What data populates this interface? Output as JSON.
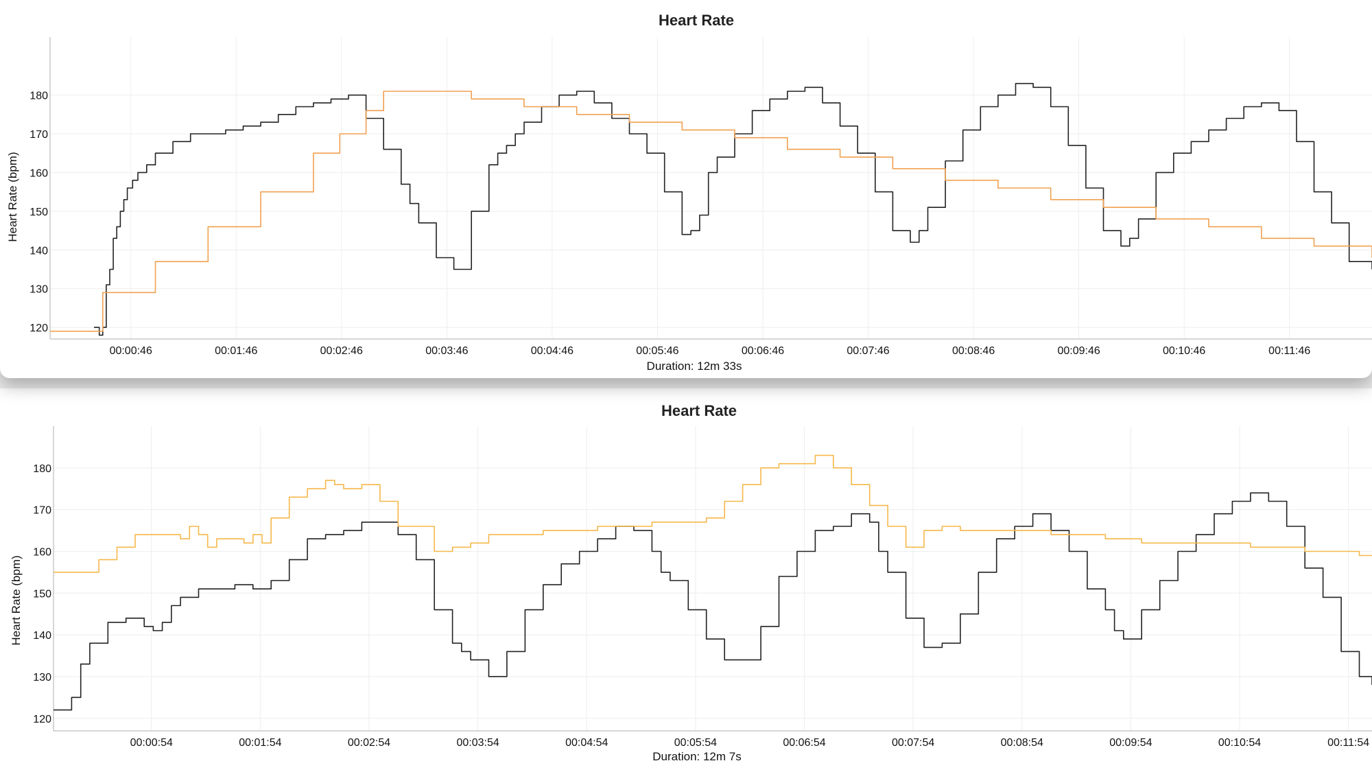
{
  "chart_data": [
    {
      "type": "line",
      "title": "Heart Rate",
      "xlabel": "Duration: 12m 33s",
      "ylabel": "Heart Rate (bpm)",
      "xlim": [
        "00:00:00",
        "00:12:33"
      ],
      "ylim": [
        117,
        195
      ],
      "yticks": [
        120,
        130,
        140,
        150,
        160,
        170,
        180
      ],
      "xticks": [
        "00:00:46",
        "00:01:46",
        "00:02:46",
        "00:03:46",
        "00:04:46",
        "00:05:46",
        "00:06:46",
        "00:07:46",
        "00:08:46",
        "00:09:46",
        "00:10:46",
        "00:11:46"
      ],
      "grid": true,
      "series": [
        {
          "color": "#222222",
          "x": [
            "00:00:25",
            "00:00:28",
            "00:00:30",
            "00:00:32",
            "00:00:34",
            "00:00:36",
            "00:00:38",
            "00:00:40",
            "00:00:42",
            "00:00:44",
            "00:00:47",
            "00:00:50",
            "00:00:55",
            "00:01:00",
            "00:01:10",
            "00:01:20",
            "00:01:30",
            "00:01:40",
            "00:01:50",
            "00:02:00",
            "00:02:10",
            "00:02:20",
            "00:02:30",
            "00:02:40",
            "00:02:50",
            "00:03:00",
            "00:03:10",
            "00:03:20",
            "00:03:25",
            "00:03:30",
            "00:03:40",
            "00:03:50",
            "00:04:00",
            "00:04:10",
            "00:04:15",
            "00:04:20",
            "00:04:25",
            "00:04:30",
            "00:04:40",
            "00:04:50",
            "00:05:00",
            "00:05:10",
            "00:05:20",
            "00:05:30",
            "00:05:40",
            "00:05:50",
            "00:06:00",
            "00:06:05",
            "00:06:10",
            "00:06:15",
            "00:06:20",
            "00:06:30",
            "00:06:40",
            "00:06:50",
            "00:07:00",
            "00:07:10",
            "00:07:20",
            "00:07:30",
            "00:07:40",
            "00:07:50",
            "00:08:00",
            "00:08:10",
            "00:08:15",
            "00:08:20",
            "00:08:30",
            "00:08:40",
            "00:08:50",
            "00:09:00",
            "00:09:10",
            "00:09:20",
            "00:09:30",
            "00:09:40",
            "00:09:50",
            "00:10:00",
            "00:10:10",
            "00:10:15",
            "00:10:20",
            "00:10:30",
            "00:10:40",
            "00:10:50",
            "00:11:00",
            "00:11:10",
            "00:11:20",
            "00:11:30",
            "00:11:40",
            "00:11:50",
            "00:12:00",
            "00:12:10",
            "00:12:20",
            "00:12:33"
          ],
          "values": [
            120,
            118,
            120,
            131,
            135,
            143,
            146,
            150,
            153,
            156,
            158,
            160,
            162,
            165,
            168,
            170,
            170,
            171,
            172,
            173,
            175,
            177,
            178,
            179,
            180,
            174,
            166,
            157,
            152,
            147,
            138,
            135,
            150,
            162,
            165,
            167,
            170,
            173,
            177,
            180,
            181,
            178,
            174,
            170,
            165,
            155,
            144,
            145,
            149,
            160,
            164,
            170,
            176,
            179,
            181,
            182,
            178,
            172,
            165,
            155,
            145,
            142,
            145,
            151,
            163,
            171,
            177,
            180,
            183,
            182,
            177,
            167,
            156,
            145,
            141,
            143,
            148,
            160,
            165,
            168,
            171,
            174,
            177,
            178,
            176,
            168,
            155,
            147,
            137,
            135
          ]
        },
        {
          "color": "#f0a050",
          "x": [
            "00:00:00",
            "00:00:30",
            "00:01:00",
            "00:01:30",
            "00:02:00",
            "00:02:30",
            "00:02:45",
            "00:03:00",
            "00:03:10",
            "00:03:30",
            "00:04:00",
            "00:04:30",
            "00:05:00",
            "00:05:30",
            "00:06:00",
            "00:06:30",
            "00:07:00",
            "00:07:30",
            "00:08:00",
            "00:08:30",
            "00:09:00",
            "00:09:30",
            "00:10:00",
            "00:10:30",
            "00:11:00",
            "00:11:30",
            "00:12:00",
            "00:12:33"
          ],
          "values": [
            119,
            129,
            137,
            146,
            155,
            165,
            170,
            176,
            181,
            181,
            179,
            177,
            175,
            173,
            171,
            169,
            166,
            164,
            161,
            158,
            156,
            153,
            151,
            148,
            146,
            143,
            141,
            138
          ]
        }
      ]
    },
    {
      "type": "line",
      "title": "Heart Rate",
      "xlabel": "Duration: 12m 7s",
      "ylabel": "Heart Rate (bpm)",
      "xlim": [
        "00:00:00",
        "00:12:07"
      ],
      "ylim": [
        117,
        190
      ],
      "yticks": [
        120,
        130,
        140,
        150,
        160,
        170,
        180
      ],
      "xticks": [
        "00:00:54",
        "00:01:54",
        "00:02:54",
        "00:03:54",
        "00:04:54",
        "00:05:54",
        "00:06:54",
        "00:07:54",
        "00:08:54",
        "00:09:54",
        "00:10:54",
        "00:11:54"
      ],
      "grid": true,
      "series": [
        {
          "color": "#222222",
          "x": [
            "00:00:00",
            "00:00:05",
            "00:00:10",
            "00:00:15",
            "00:00:20",
            "00:00:30",
            "00:00:40",
            "00:00:50",
            "00:00:55",
            "00:01:00",
            "00:01:05",
            "00:01:10",
            "00:01:20",
            "00:01:30",
            "00:01:40",
            "00:01:50",
            "00:02:00",
            "00:02:10",
            "00:02:20",
            "00:02:30",
            "00:02:40",
            "00:02:50",
            "00:03:00",
            "00:03:10",
            "00:03:20",
            "00:03:30",
            "00:03:40",
            "00:03:45",
            "00:03:50",
            "00:04:00",
            "00:04:10",
            "00:04:20",
            "00:04:30",
            "00:04:40",
            "00:04:50",
            "00:05:00",
            "00:05:10",
            "00:05:20",
            "00:05:30",
            "00:05:35",
            "00:05:40",
            "00:05:50",
            "00:06:00",
            "00:06:10",
            "00:06:20",
            "00:06:30",
            "00:06:40",
            "00:06:50",
            "00:07:00",
            "00:07:10",
            "00:07:20",
            "00:07:30",
            "00:07:35",
            "00:07:40",
            "00:07:50",
            "00:08:00",
            "00:08:10",
            "00:08:20",
            "00:08:30",
            "00:08:40",
            "00:08:50",
            "00:09:00",
            "00:09:10",
            "00:09:20",
            "00:09:30",
            "00:09:40",
            "00:09:45",
            "00:09:50",
            "00:10:00",
            "00:10:10",
            "00:10:20",
            "00:10:30",
            "00:10:40",
            "00:10:50",
            "00:11:00",
            "00:11:10",
            "00:11:20",
            "00:11:30",
            "00:11:40",
            "00:11:50",
            "00:12:00",
            "00:12:07"
          ],
          "values": [
            122,
            122,
            125,
            133,
            138,
            143,
            144,
            142,
            141,
            143,
            147,
            149,
            151,
            151,
            152,
            151,
            153,
            158,
            163,
            164,
            165,
            167,
            167,
            164,
            158,
            146,
            138,
            136,
            134,
            130,
            136,
            146,
            152,
            157,
            160,
            163,
            166,
            165,
            160,
            155,
            153,
            146,
            139,
            134,
            134,
            142,
            154,
            160,
            165,
            166,
            169,
            167,
            160,
            155,
            144,
            137,
            138,
            145,
            155,
            163,
            166,
            169,
            165,
            160,
            151,
            146,
            141,
            139,
            146,
            153,
            160,
            164,
            169,
            172,
            174,
            172,
            166,
            156,
            149,
            136,
            130,
            128
          ]
        },
        {
          "color": "#f5b74a",
          "x": [
            "00:00:00",
            "00:00:15",
            "00:00:25",
            "00:00:35",
            "00:00:45",
            "00:01:00",
            "00:01:10",
            "00:01:15",
            "00:01:20",
            "00:01:25",
            "00:01:30",
            "00:01:40",
            "00:01:45",
            "00:01:50",
            "00:01:55",
            "00:02:00",
            "00:02:10",
            "00:02:20",
            "00:02:30",
            "00:02:35",
            "00:02:40",
            "00:02:50",
            "00:03:00",
            "00:03:10",
            "00:03:30",
            "00:03:40",
            "00:03:50",
            "00:04:00",
            "00:04:30",
            "00:05:00",
            "00:05:30",
            "00:06:00",
            "00:06:10",
            "00:06:20",
            "00:06:30",
            "00:06:40",
            "00:07:00",
            "00:07:10",
            "00:07:20",
            "00:07:30",
            "00:07:40",
            "00:07:50",
            "00:08:00",
            "00:08:10",
            "00:08:20",
            "00:08:50",
            "00:09:10",
            "00:09:40",
            "00:10:00",
            "00:10:30",
            "00:11:00",
            "00:11:30",
            "00:12:00",
            "00:12:07"
          ],
          "values": [
            155,
            155,
            158,
            161,
            164,
            164,
            163,
            166,
            164,
            161,
            163,
            163,
            162,
            164,
            162,
            168,
            173,
            175,
            177,
            176,
            175,
            176,
            172,
            166,
            160,
            161,
            162,
            164,
            165,
            166,
            167,
            168,
            172,
            176,
            180,
            181,
            183,
            180,
            176,
            171,
            166,
            161,
            165,
            166,
            165,
            165,
            164,
            163,
            162,
            162,
            161,
            160,
            159,
            159
          ]
        }
      ]
    }
  ]
}
